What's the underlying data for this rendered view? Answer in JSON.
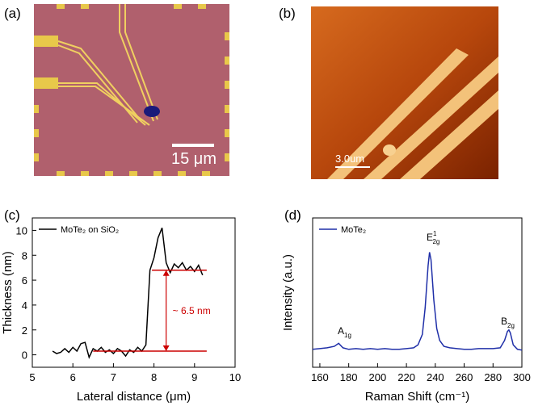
{
  "panels": [
    {
      "label": "(a)",
      "scale_bar": "15 μm"
    },
    {
      "label": "(b)",
      "scale_bar": "3.0um"
    }
  ],
  "chart_data": [
    {
      "type": "line",
      "panel_label": "(c)",
      "x_label": "Lateral distance (μm)",
      "y_label": "Thickness (nm)",
      "xlim": [
        5,
        10
      ],
      "xticks": [
        5,
        6,
        7,
        8,
        9,
        10
      ],
      "ylim": [
        -1,
        11
      ],
      "yticks": [
        0,
        2,
        4,
        6,
        8,
        10
      ],
      "x": [
        5.5,
        5.6,
        5.7,
        5.8,
        5.9,
        6.0,
        6.1,
        6.2,
        6.3,
        6.4,
        6.5,
        6.6,
        6.7,
        6.8,
        6.9,
        7.0,
        7.1,
        7.2,
        7.3,
        7.4,
        7.5,
        7.6,
        7.7,
        7.8,
        7.9,
        8.0,
        8.1,
        8.2,
        8.3,
        8.4,
        8.5,
        8.6,
        8.7,
        8.8,
        8.9,
        9.0,
        9.1,
        9.2
      ],
      "series": [
        {
          "name": "MoTe₂ on SiO₂",
          "color": "#000000",
          "values": [
            0.3,
            0.1,
            0.2,
            0.5,
            0.2,
            0.6,
            0.3,
            0.9,
            1.0,
            -0.2,
            0.5,
            0.3,
            0.6,
            0.2,
            0.4,
            0.1,
            0.5,
            0.3,
            -0.1,
            0.4,
            0.2,
            0.6,
            0.3,
            0.8,
            6.8,
            7.8,
            9.4,
            10.2,
            7.4,
            6.6,
            7.3,
            7.0,
            7.4,
            6.8,
            7.1,
            6.7,
            7.2,
            6.4
          ]
        }
      ],
      "reference_lines": [
        {
          "y": 0.3,
          "x": [
            6.5,
            9.3
          ]
        },
        {
          "y": 6.8,
          "x": [
            7.95,
            9.3
          ]
        }
      ],
      "arrow": {
        "x": 8.3,
        "y": [
          0.3,
          6.8
        ],
        "color": "#cc0000",
        "text": "~ 6.5 nm"
      }
    },
    {
      "type": "line",
      "panel_label": "(d)",
      "x_label": "Raman Shift (cm⁻¹)",
      "y_label": "Intensity (a.u.)",
      "xlim": [
        155,
        300
      ],
      "xticks": [
        160,
        180,
        200,
        220,
        240,
        260,
        280,
        300
      ],
      "ylim": [
        0,
        100
      ],
      "x": [
        155,
        160,
        165,
        170,
        173,
        176,
        180,
        185,
        190,
        195,
        200,
        205,
        210,
        215,
        220,
        225,
        228,
        231,
        233,
        235,
        236,
        237,
        239,
        241,
        243,
        246,
        250,
        255,
        260,
        265,
        270,
        275,
        280,
        285,
        288,
        290,
        291,
        292,
        294,
        297,
        300
      ],
      "series": [
        {
          "name": "MoTe₂",
          "color": "#1f2fa8",
          "values": [
            12,
            12.5,
            13,
            14,
            16,
            13,
            12,
            12.5,
            12,
            12.5,
            12,
            12.5,
            12,
            12,
            12.5,
            13,
            15,
            22,
            40,
            68,
            77,
            72,
            45,
            26,
            18,
            14,
            13,
            12.5,
            12,
            12,
            12.5,
            12.5,
            12.5,
            13,
            18,
            24,
            25,
            23,
            15,
            12,
            11.5
          ]
        }
      ],
      "peak_labels": [
        {
          "base": "A",
          "sub": "1g"
        },
        {
          "base": "E",
          "sub": "2g",
          "sup": "1"
        },
        {
          "base": "B",
          "sub": "2g"
        }
      ]
    }
  ]
}
